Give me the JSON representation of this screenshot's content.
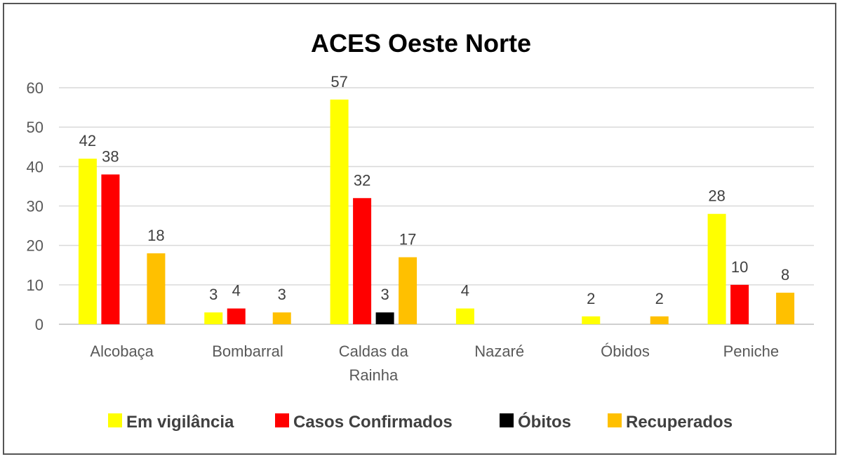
{
  "chart_data": {
    "type": "bar",
    "title": "ACES Oeste Norte",
    "xlabel": "",
    "ylabel": "",
    "ylim": [
      0,
      60
    ],
    "yticks": [
      "0",
      "10",
      "20",
      "30",
      "40",
      "50",
      "60"
    ],
    "grid": true,
    "legend_position": "bottom",
    "categories": [
      [
        "Alcobaça"
      ],
      [
        "Bombarral"
      ],
      [
        "Caldas da",
        "Rainha"
      ],
      [
        "Nazaré"
      ],
      [
        "Óbidos"
      ],
      [
        "Peniche"
      ]
    ],
    "series": [
      {
        "name": "Em vigilância",
        "color": "#ffff00",
        "values": [
          42,
          3,
          57,
          4,
          2,
          28
        ]
      },
      {
        "name": "Casos Confirmados",
        "color": "#ff0000",
        "values": [
          38,
          4,
          32,
          null,
          null,
          10
        ]
      },
      {
        "name": "Óbitos",
        "color": "#000000",
        "values": [
          null,
          null,
          3,
          null,
          null,
          null
        ]
      },
      {
        "name": "Recuperados",
        "color": "#ffc000",
        "values": [
          18,
          3,
          17,
          null,
          2,
          8
        ]
      }
    ]
  }
}
